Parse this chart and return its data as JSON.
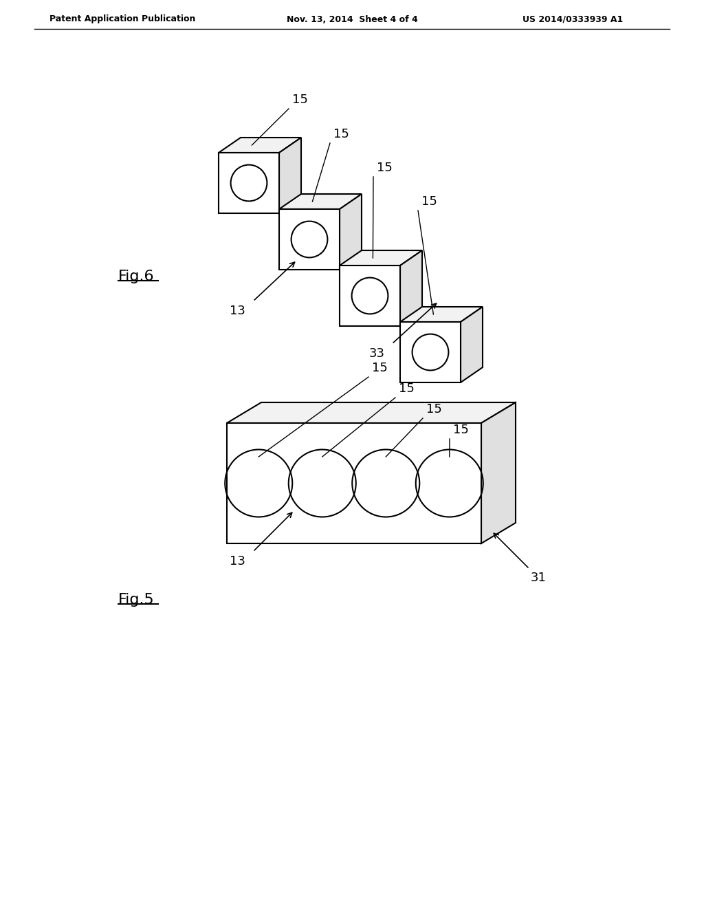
{
  "bg_color": "#ffffff",
  "line_color": "#000000",
  "header_left": "Patent Application Publication",
  "header_center": "Nov. 13, 2014  Sheet 4 of 4",
  "header_right": "US 2014/0333939 A1",
  "fig6_label": "Fig.6",
  "fig5_label": "Fig.5",
  "label_15": "15",
  "label_13_top": "13",
  "label_33": "33",
  "label_13_bot": "13",
  "label_31": "31"
}
